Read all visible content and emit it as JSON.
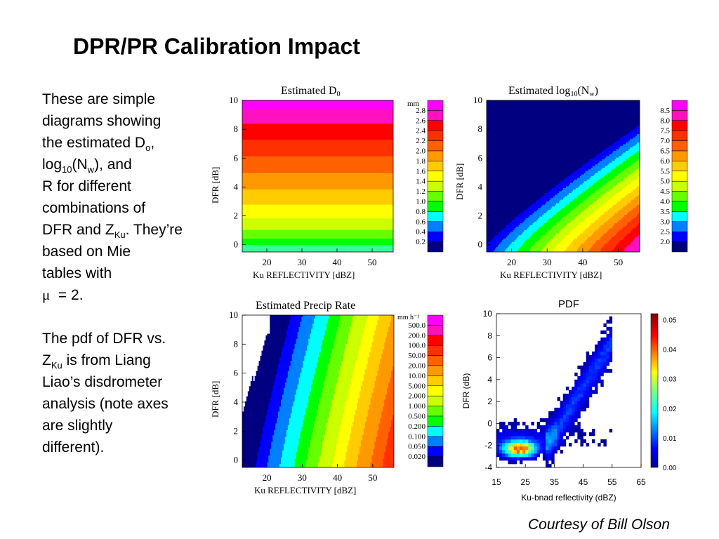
{
  "title": "DPR/PR Calibration Impact",
  "body": {
    "p1": {
      "t1": "These are simple",
      "t2": "diagrams showing",
      "t3": "the estimated D",
      "t3_sub": "o",
      "t3_end": ",",
      "t4_a": "log",
      "t4_sub": "10",
      "t4_b": "(N",
      "t4_sub2": "w",
      "t4_c": "), and",
      "t5": "R for different",
      "t6": "combinations of",
      "t7_a": "DFR and Z",
      "t7_sub": "Ku",
      "t7_b": ".  They’re",
      "t8": "based on Mie",
      "t9": "tables with",
      "t10_mu": "μ",
      "t10_b": "  = 2."
    },
    "p2": {
      "t1": "The pdf of DFR vs.",
      "t2_a": "Z",
      "t2_sub": "Ku",
      "t2_b": " is from Liang",
      "t3": "Liao’s disdrometer",
      "t4": "analysis (note axes",
      "t5": "are slightly",
      "t6": "different)."
    }
  },
  "credit": "Courtesy of Bill Olson",
  "chart_data": [
    {
      "type": "heatmap",
      "title": "Estimated D",
      "title_sub": "0",
      "xlabel": "Ku REFLECTIVITY [dBZ]",
      "ylabel": "DFR [dB]",
      "xlim": [
        13,
        56
      ],
      "ylim": [
        -0.5,
        10
      ],
      "xticks": [
        20,
        30,
        40,
        50
      ],
      "yticks": [
        0,
        2,
        4,
        6,
        8,
        10
      ],
      "colorbar_unit": "mm",
      "colorbar_labels": [
        "2.8",
        "2.6",
        "2.4",
        "2.2",
        "2.0",
        "1.8",
        "1.6",
        "1.4",
        "1.2",
        "1.0",
        "0.8",
        "0.6",
        "0.4",
        "0.2"
      ],
      "colors": [
        "#ff00ff",
        "#ff10c0",
        "#ff0000",
        "#ff3000",
        "#ff6000",
        "#ff9900",
        "#ffcc00",
        "#ffff00",
        "#ccff00",
        "#66ff00",
        "#00ff00",
        "#00ffff",
        "#0080ff",
        "#0000ff",
        "#000080"
      ]
    },
    {
      "type": "heatmap",
      "title_a": "Estimated log",
      "title_sub": "10",
      "title_b": "(N",
      "title_sub2": "w",
      "title_c": ")",
      "xlabel": "Ku REFLECTIVITY [dBZ]",
      "ylabel": "DFR [dB]",
      "xlim": [
        13,
        56
      ],
      "ylim": [
        -0.5,
        10
      ],
      "xticks": [
        20,
        30,
        40,
        50
      ],
      "yticks": [
        0,
        2,
        4,
        6,
        8,
        10
      ],
      "colorbar_labels": [
        "8.5",
        "8.0",
        "7.5",
        "7.0",
        "6.5",
        "6.0",
        "5.5",
        "5.0",
        "4.5",
        "4.0",
        "3.5",
        "3.0",
        "2.5",
        "2.0"
      ],
      "colors": [
        "#ff00ff",
        "#ff10c0",
        "#ff0000",
        "#ff3000",
        "#ff6000",
        "#ff9900",
        "#ffcc00",
        "#ffff00",
        "#ccff00",
        "#66ff00",
        "#00ff00",
        "#00ffff",
        "#0080ff",
        "#0000ff",
        "#000080"
      ]
    },
    {
      "type": "heatmap",
      "title": "Estimated Precip Rate",
      "xlabel": "Ku REFLECTIVITY [dBZ]",
      "ylabel": "DFR [dB]",
      "xlim": [
        13,
        56
      ],
      "ylim": [
        -0.5,
        10
      ],
      "xticks": [
        20,
        30,
        40,
        50
      ],
      "yticks": [
        0,
        2,
        4,
        6,
        8,
        10
      ],
      "colorbar_unit": "mm h⁻¹",
      "colorbar_labels": [
        "500.0",
        "200.0",
        "100.0",
        "50.00",
        "20.00",
        "10.00",
        "5.000",
        "2.000",
        "1.000",
        "0.500",
        "0.200",
        "0.100",
        "0.050",
        "0.020"
      ],
      "colors": [
        "#ff00ff",
        "#ff10c0",
        "#ff0000",
        "#ff3000",
        "#ff6000",
        "#ff9900",
        "#ffcc00",
        "#ffff00",
        "#ccff00",
        "#66ff00",
        "#00ff00",
        "#00ffff",
        "#0080ff",
        "#0000ff",
        "#000080"
      ]
    },
    {
      "type": "heatmap",
      "title": "PDF",
      "xlabel": "Ku-bnad reflectivity (dBZ)",
      "ylabel": "DFR (dB)",
      "xlim": [
        15,
        65
      ],
      "ylim": [
        -4,
        10
      ],
      "xticks": [
        15,
        25,
        35,
        45,
        55,
        65
      ],
      "yticks": [
        -4,
        -2,
        0,
        2,
        4,
        6,
        8,
        10
      ],
      "colorbar_ticks": [
        0.0,
        0.01,
        0.02,
        0.03,
        0.04,
        0.05
      ],
      "colorbar_labels": [
        "0.05",
        "0.04",
        "0.03",
        "0.02",
        "0.01",
        "0.00"
      ],
      "colorbar_range": [
        0,
        0.052
      ]
    }
  ]
}
